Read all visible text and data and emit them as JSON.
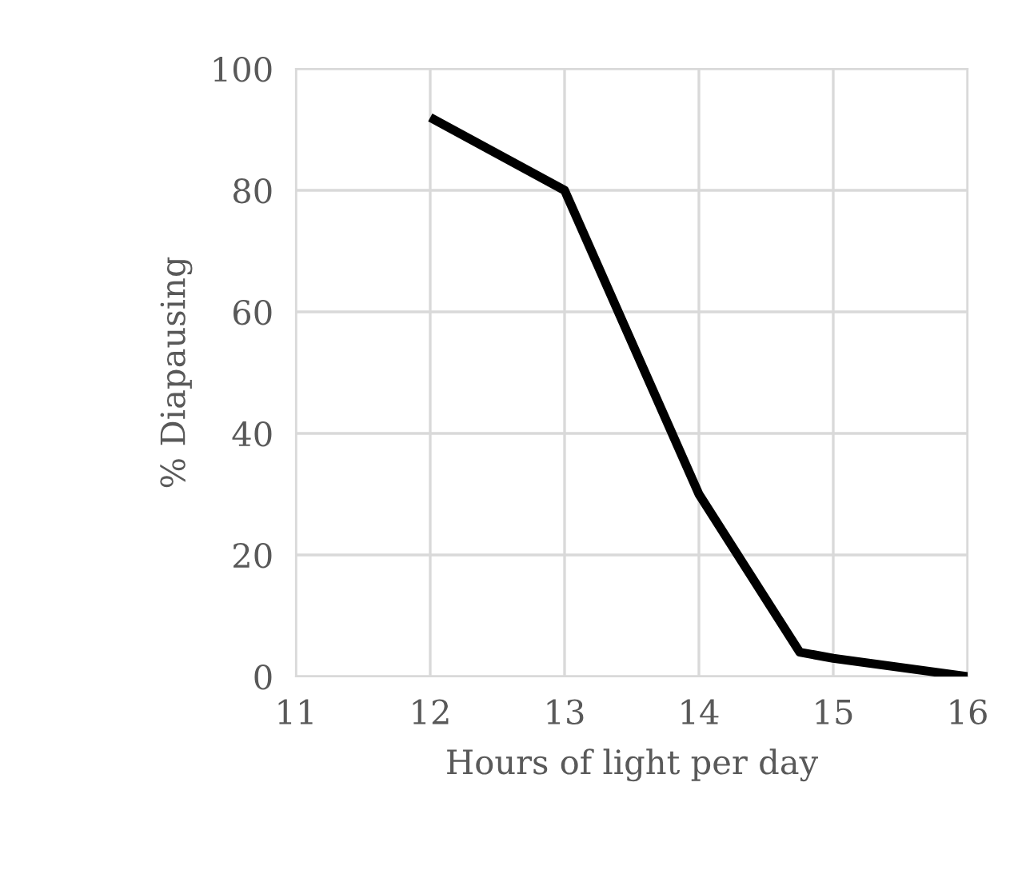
{
  "chart_data": {
    "type": "line",
    "xlabel": "Hours of light per day",
    "ylabel": "% Diapausing",
    "x": [
      12,
      13,
      14,
      14.75,
      15,
      16
    ],
    "series": [
      {
        "color": "#000000",
        "values": [
          92,
          80,
          30,
          4,
          3,
          0
        ]
      }
    ],
    "xlim": [
      11,
      16
    ],
    "xticks": [
      11,
      12,
      13,
      14,
      15,
      16
    ],
    "ylim": [
      0,
      100
    ],
    "yticks": [
      0,
      20,
      40,
      60,
      80,
      100
    ],
    "grid": true,
    "marker": "none",
    "line_style": "solid"
  }
}
